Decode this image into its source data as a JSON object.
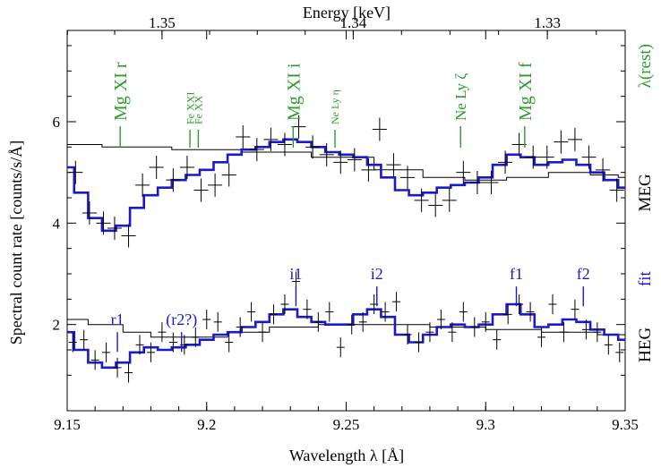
{
  "chart_data": {
    "type": "line",
    "xlabel": "Wavelength λ [Å]",
    "ylabel": "Spectral count rate [counts/s/Å]",
    "top_axis_label": "Energy [keV]",
    "xlim": [
      9.15,
      9.35
    ],
    "ylim": [
      0.3,
      7.8
    ],
    "xticks": [
      9.15,
      9.2,
      9.25,
      9.3,
      9.35
    ],
    "xtick_labels": [
      "9.15",
      "9.2",
      "9.25",
      "9.3",
      "9.35"
    ],
    "yticks": [
      2,
      4,
      6
    ],
    "ytick_labels": [
      "2",
      "4",
      "6"
    ],
    "top_ticks": [
      1.35,
      1.34,
      1.33
    ],
    "top_tick_labels": [
      "1.35",
      "1.34",
      "1.33"
    ],
    "right_labels": [
      {
        "text": "λ(rest)",
        "color": "#2e9a2e",
        "y": 7.1
      },
      {
        "text": "MEG",
        "color": "#000000",
        "y": 4.6
      },
      {
        "text": "fit",
        "color": "#1a1acc",
        "y": 2.9
      },
      {
        "text": "HEG",
        "color": "#000000",
        "y": 1.6
      }
    ],
    "line_markers": [
      {
        "label": "Mg XI r",
        "x": 9.169,
        "size": "large"
      },
      {
        "label": "Fe XXI",
        "x": 9.194,
        "size": "small"
      },
      {
        "label": "Fe XX",
        "x": 9.197,
        "size": "small"
      },
      {
        "label": "Mg XI i",
        "x": 9.231,
        "size": "large"
      },
      {
        "label": "Ne Ly η",
        "x": 9.246,
        "size": "small"
      },
      {
        "label": "Ne Ly ζ",
        "x": 9.291,
        "size": "medium"
      },
      {
        "label": "Mg XI f",
        "x": 9.314,
        "size": "large"
      }
    ],
    "fit_markers": [
      {
        "label": "r1",
        "x": 9.168,
        "y": 1.85
      },
      {
        "label": "(r2?)",
        "x": 9.191,
        "y": 1.85
      },
      {
        "label": "i1",
        "x": 9.232,
        "y": 2.75
      },
      {
        "label": "i2",
        "x": 9.261,
        "y": 2.75
      },
      {
        "label": "f1",
        "x": 9.311,
        "y": 2.75
      },
      {
        "label": "f2",
        "x": 9.335,
        "y": 2.75
      }
    ],
    "series": [
      {
        "name": "MEG",
        "kind": "fit",
        "color": "#1a1acc",
        "x": [
          9.15,
          9.155,
          9.16,
          9.165,
          9.17,
          9.175,
          9.18,
          9.185,
          9.19,
          9.195,
          9.2,
          9.205,
          9.21,
          9.215,
          9.22,
          9.225,
          9.23,
          9.235,
          9.24,
          9.245,
          9.25,
          9.255,
          9.26,
          9.265,
          9.27,
          9.275,
          9.28,
          9.285,
          9.29,
          9.295,
          9.3,
          9.305,
          9.31,
          9.315,
          9.32,
          9.325,
          9.33,
          9.335,
          9.34,
          9.345,
          9.35
        ],
        "y": [
          5.1,
          4.6,
          4.1,
          3.85,
          3.95,
          4.3,
          4.55,
          4.7,
          4.85,
          4.95,
          5.05,
          5.2,
          5.35,
          5.45,
          5.5,
          5.6,
          5.65,
          5.6,
          5.5,
          5.4,
          5.35,
          5.3,
          5.15,
          4.9,
          4.65,
          4.55,
          4.6,
          4.7,
          4.75,
          4.8,
          4.9,
          5.15,
          5.35,
          5.3,
          5.15,
          5.2,
          5.25,
          5.15,
          5.0,
          4.85,
          4.7
        ]
      },
      {
        "name": "MEG",
        "kind": "continuum",
        "color": "#000000",
        "x": [
          9.15,
          9.175,
          9.2,
          9.225,
          9.25,
          9.27,
          9.285,
          9.3,
          9.315,
          9.33,
          9.345,
          9.35
        ],
        "y": [
          5.55,
          5.5,
          5.45,
          5.4,
          5.3,
          5.05,
          4.9,
          4.85,
          4.9,
          5.0,
          4.95,
          4.9
        ]
      },
      {
        "name": "HEG",
        "kind": "fit",
        "color": "#1a1acc",
        "x": [
          9.15,
          9.155,
          9.16,
          9.165,
          9.17,
          9.175,
          9.18,
          9.185,
          9.19,
          9.195,
          9.2,
          9.205,
          9.21,
          9.215,
          9.22,
          9.225,
          9.23,
          9.235,
          9.24,
          9.245,
          9.25,
          9.255,
          9.26,
          9.265,
          9.27,
          9.275,
          9.28,
          9.285,
          9.29,
          9.295,
          9.3,
          9.305,
          9.31,
          9.315,
          9.32,
          9.325,
          9.33,
          9.335,
          9.34,
          9.345,
          9.35
        ],
        "y": [
          1.85,
          1.5,
          1.25,
          1.15,
          1.25,
          1.45,
          1.55,
          1.5,
          1.55,
          1.6,
          1.7,
          1.8,
          1.85,
          1.95,
          2.05,
          2.2,
          2.3,
          2.15,
          2.05,
          2.0,
          2.0,
          2.2,
          2.3,
          2.15,
          1.8,
          1.65,
          1.8,
          1.95,
          2.0,
          1.95,
          2.0,
          2.2,
          2.4,
          2.2,
          1.95,
          2.0,
          2.1,
          2.05,
          1.9,
          1.8,
          1.7
        ]
      },
      {
        "name": "HEG",
        "kind": "continuum",
        "color": "#000000",
        "x": [
          9.15,
          9.165,
          9.175,
          9.185,
          9.2,
          9.215,
          9.23,
          9.25,
          9.27,
          9.29,
          9.31,
          9.33,
          9.35
        ],
        "y": [
          2.1,
          2.0,
          1.85,
          1.75,
          1.75,
          1.85,
          1.95,
          2.0,
          2.0,
          1.95,
          1.9,
          1.85,
          1.8
        ]
      }
    ],
    "data_points": [
      {
        "name": "MEG",
        "x": [
          9.153,
          9.158,
          9.163,
          9.167,
          9.172,
          9.177,
          9.182,
          9.188,
          9.193,
          9.198,
          9.203,
          9.208,
          9.213,
          9.218,
          9.223,
          9.228,
          9.233,
          9.238,
          9.243,
          9.248,
          9.253,
          9.258,
          9.262,
          9.267,
          9.272,
          9.277,
          9.282,
          9.287,
          9.292,
          9.297,
          9.302,
          9.307,
          9.312,
          9.317,
          9.322,
          9.327,
          9.332,
          9.337,
          9.342,
          9.347
        ],
        "y": [
          5.0,
          4.2,
          4.0,
          3.9,
          3.75,
          4.75,
          5.1,
          4.85,
          5.1,
          4.65,
          4.75,
          4.95,
          5.7,
          5.45,
          5.65,
          5.55,
          5.9,
          5.5,
          5.35,
          5.2,
          5.25,
          5.05,
          5.85,
          5.15,
          4.9,
          4.45,
          4.35,
          4.45,
          5.0,
          4.8,
          4.8,
          5.2,
          5.55,
          5.3,
          5.3,
          5.6,
          5.65,
          5.3,
          5.05,
          4.65
        ]
      },
      {
        "name": "HEG",
        "x": [
          9.152,
          9.156,
          9.16,
          9.164,
          9.168,
          9.172,
          9.176,
          9.18,
          9.184,
          9.188,
          9.192,
          9.196,
          9.2,
          9.204,
          9.208,
          9.212,
          9.216,
          9.22,
          9.224,
          9.228,
          9.232,
          9.236,
          9.24,
          9.244,
          9.248,
          9.252,
          9.256,
          9.26,
          9.264,
          9.268,
          9.272,
          9.276,
          9.28,
          9.284,
          9.288,
          9.292,
          9.296,
          9.3,
          9.304,
          9.308,
          9.312,
          9.316,
          9.32,
          9.324,
          9.328,
          9.332,
          9.336,
          9.34,
          9.344,
          9.348
        ],
        "y": [
          1.65,
          1.7,
          1.3,
          1.45,
          1.15,
          1.05,
          1.6,
          1.45,
          1.85,
          1.65,
          1.6,
          1.75,
          2.1,
          2.05,
          1.65,
          1.95,
          2.25,
          1.85,
          2.2,
          2.4,
          2.85,
          2.3,
          2.05,
          2.25,
          1.55,
          2.0,
          2.05,
          2.4,
          2.25,
          2.45,
          1.8,
          1.65,
          1.85,
          2.1,
          1.85,
          2.25,
          1.95,
          2.05,
          1.7,
          2.2,
          2.4,
          2.25,
          1.75,
          2.4,
          1.85,
          2.3,
          1.9,
          1.85,
          1.6,
          1.45
        ]
      }
    ]
  }
}
